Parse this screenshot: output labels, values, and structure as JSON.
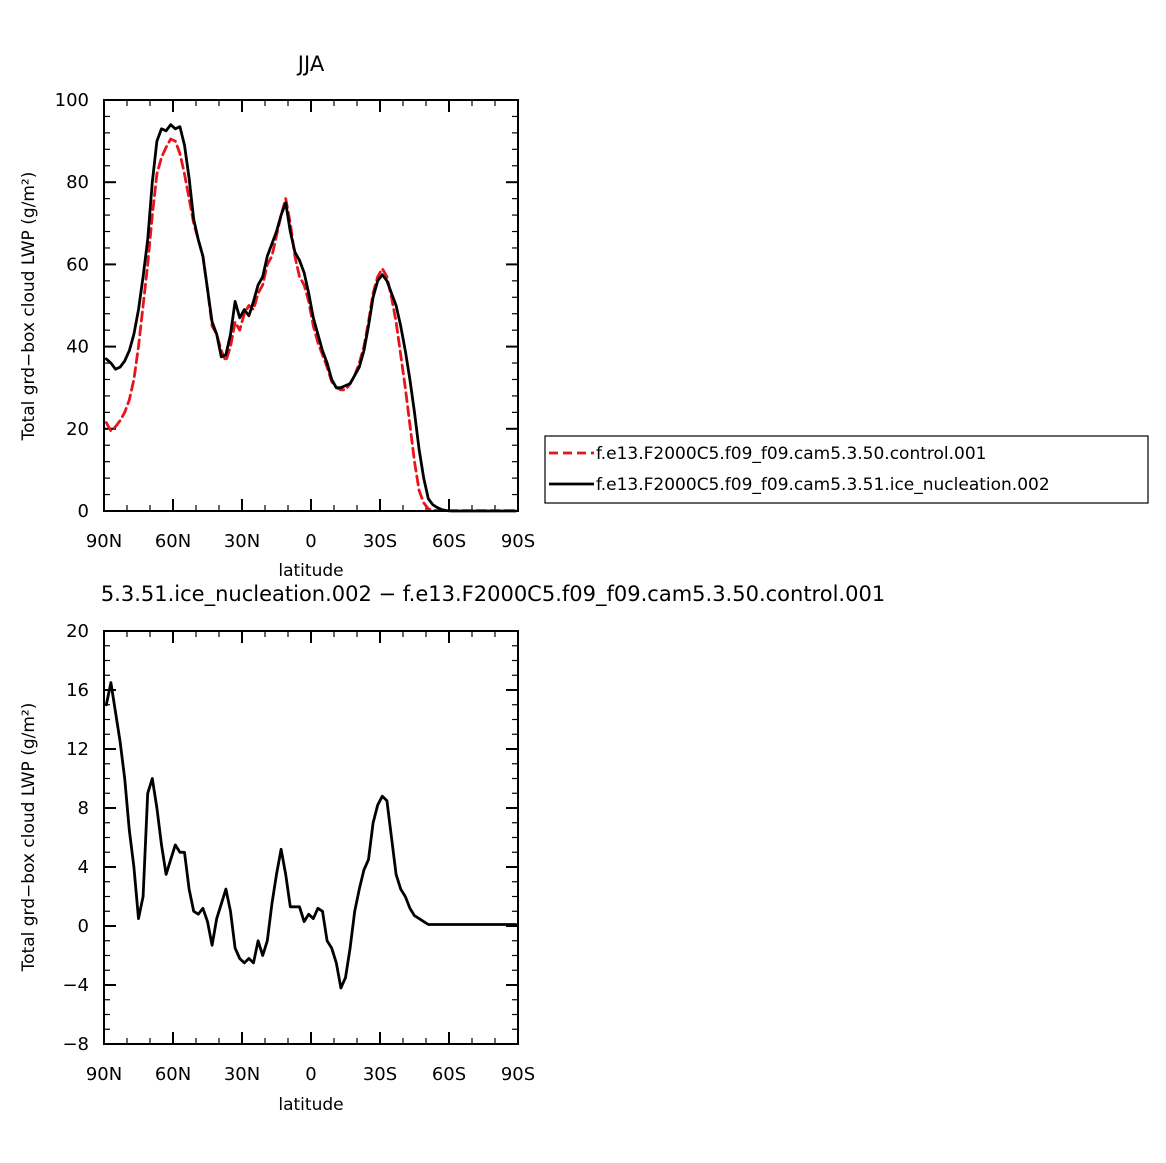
{
  "chart_data": [
    {
      "type": "line",
      "title": "JJA",
      "xlabel": "latitude",
      "ylabel": "Total grd−box cloud LWP (g/m²)",
      "x_ticks": [
        {
          "value": 90,
          "label": "90N"
        },
        {
          "value": 60,
          "label": "60N"
        },
        {
          "value": 30,
          "label": "30N"
        },
        {
          "value": 0,
          "label": "0"
        },
        {
          "value": -30,
          "label": "30S"
        },
        {
          "value": -60,
          "label": "60S"
        },
        {
          "value": -90,
          "label": "90S"
        }
      ],
      "xlim": [
        90,
        -90
      ],
      "ylim": [
        0,
        100
      ],
      "y_ticks": [
        0,
        20,
        40,
        60,
        80,
        100
      ],
      "y_tick_labels": [
        "0",
        "20",
        "40",
        "60",
        "80",
        "100"
      ],
      "legend_position": "right",
      "series": [
        {
          "name": "f.e13.F2000C5.f09_f09.cam5.3.50.control.001",
          "color": "#e8141c",
          "dash": "dashed",
          "x": [
            89,
            87,
            85,
            83,
            81,
            79,
            77,
            75,
            73,
            71,
            69,
            67,
            65,
            63,
            61,
            59,
            57,
            55,
            53,
            51,
            49,
            47,
            45,
            43,
            41,
            39,
            37,
            35,
            33,
            31,
            29,
            27,
            25,
            23,
            21,
            19,
            17,
            15,
            13,
            11,
            9,
            7,
            5,
            3,
            1,
            -1,
            -3,
            -5,
            -7,
            -9,
            -11,
            -13,
            -15,
            -17,
            -19,
            -21,
            -23,
            -25,
            -27,
            -29,
            -31,
            -33,
            -35,
            -37,
            -39,
            -41,
            -43,
            -45,
            -47,
            -49,
            -51,
            -53,
            -55,
            -57,
            -59,
            -61,
            -63,
            -65,
            -67,
            -69,
            -71,
            -73,
            -75,
            -77,
            -79,
            -81,
            -83,
            -85,
            -87,
            -89
          ],
          "y": [
            21.5,
            19.5,
            20.5,
            22,
            24,
            27,
            32,
            40,
            50,
            60,
            72,
            82,
            86,
            88.5,
            90.5,
            90,
            87,
            82,
            76,
            70,
            66,
            62,
            54,
            45,
            43,
            39,
            36.5,
            40,
            46,
            44,
            48,
            50,
            49,
            53,
            55,
            60,
            62,
            67,
            72,
            76,
            70,
            62,
            57,
            55,
            51,
            45,
            41,
            38,
            35,
            31.5,
            30,
            29.5,
            29.5,
            31,
            33,
            36,
            40,
            46,
            53,
            57,
            59,
            57,
            52,
            46,
            38,
            30,
            21,
            12,
            5,
            2,
            0.5,
            0.2,
            0.1,
            0.1,
            0.1,
            0.1,
            0.1,
            0.1,
            0.1,
            0.1,
            0.1,
            0.1,
            0.1,
            0.1,
            0.1,
            0.1,
            0.1,
            0.1,
            0.1,
            0.1
          ]
        },
        {
          "name": "f.e13.F2000C5.f09_f09.cam5.3.51.ice_nucleation.002",
          "color": "#000000",
          "dash": "solid",
          "x": [
            89,
            87,
            85,
            83,
            81,
            79,
            77,
            75,
            73,
            71,
            69,
            67,
            65,
            63,
            61,
            59,
            57,
            55,
            53,
            51,
            49,
            47,
            45,
            43,
            41,
            39,
            37,
            35,
            33,
            31,
            29,
            27,
            25,
            23,
            21,
            19,
            17,
            15,
            13,
            11,
            9,
            7,
            5,
            3,
            1,
            -1,
            -3,
            -5,
            -7,
            -9,
            -11,
            -13,
            -15,
            -17,
            -19,
            -21,
            -23,
            -25,
            -27,
            -29,
            -31,
            -33,
            -35,
            -37,
            -39,
            -41,
            -43,
            -45,
            -47,
            -49,
            -51,
            -53,
            -55,
            -57,
            -59,
            -61,
            -63,
            -65,
            -67,
            -69,
            -71,
            -73,
            -75,
            -77,
            -79,
            -81,
            -83,
            -85,
            -87,
            -89
          ],
          "y": [
            37,
            36,
            34.5,
            35,
            36.5,
            39,
            43,
            49,
            57,
            66,
            80,
            90,
            93,
            92.5,
            94,
            93,
            93.5,
            89,
            81,
            71,
            66,
            62,
            54,
            46,
            43,
            37.5,
            38,
            43,
            51,
            47,
            49,
            47.5,
            51,
            55,
            57,
            62,
            65,
            68,
            72,
            75,
            68,
            63,
            61,
            58,
            53,
            47,
            43,
            39,
            36,
            32,
            30,
            30,
            30.5,
            31,
            33,
            35,
            39,
            45,
            52,
            56,
            57.5,
            56,
            53,
            50,
            45,
            39,
            32,
            24,
            15,
            8,
            3,
            1.5,
            0.8,
            0.3,
            0.1,
            0,
            0,
            0,
            0,
            0,
            0,
            0,
            0,
            0,
            0,
            0,
            0,
            0,
            0,
            0
          ]
        }
      ]
    },
    {
      "type": "line",
      "title": "5.3.51.ice_nucleation.002 − f.e13.F2000C5.f09_f09.cam5.3.50.control.001",
      "xlabel": "latitude",
      "ylabel": "Total grd−box cloud LWP (g/m²)",
      "x_ticks": [
        {
          "value": 90,
          "label": "90N"
        },
        {
          "value": 60,
          "label": "60N"
        },
        {
          "value": 30,
          "label": "30N"
        },
        {
          "value": 0,
          "label": "0"
        },
        {
          "value": -30,
          "label": "30S"
        },
        {
          "value": -60,
          "label": "60S"
        },
        {
          "value": -90,
          "label": "90S"
        }
      ],
      "xlim": [
        90,
        -90
      ],
      "ylim": [
        -8,
        20
      ],
      "y_ticks": [
        -8,
        -4,
        0,
        4,
        8,
        12,
        16,
        20
      ],
      "y_tick_labels": [
        "−8",
        "−4",
        "0",
        "4",
        "8",
        "12",
        "16",
        "20"
      ],
      "series": [
        {
          "color": "#000000",
          "dash": "solid",
          "x": [
            89,
            87,
            85,
            83,
            81,
            79,
            77,
            75,
            73,
            71,
            69,
            67,
            65,
            63,
            61,
            59,
            57,
            55,
            53,
            51,
            49,
            47,
            45,
            43,
            41,
            39,
            37,
            35,
            33,
            31,
            29,
            27,
            25,
            23,
            21,
            19,
            17,
            15,
            13,
            11,
            9,
            7,
            5,
            3,
            1,
            -1,
            -3,
            -5,
            -7,
            -9,
            -11,
            -13,
            -15,
            -17,
            -19,
            -21,
            -23,
            -25,
            -27,
            -29,
            -31,
            -33,
            -35,
            -37,
            -39,
            -41,
            -43,
            -45,
            -47,
            -49,
            -51,
            -53,
            -55,
            -57,
            -59,
            -61,
            -63,
            -65,
            -67,
            -69,
            -71,
            -73,
            -75,
            -77,
            -79,
            -81,
            -83,
            -85,
            -87,
            -89
          ],
          "y": [
            15,
            16.5,
            14.5,
            12.5,
            10,
            6.5,
            4,
            0.5,
            2,
            9,
            10,
            8,
            5.5,
            3.5,
            4.5,
            5.5,
            5,
            5,
            2.5,
            1,
            0.8,
            1.2,
            0.3,
            -1.3,
            0.5,
            1.5,
            2.5,
            1,
            -1.5,
            -2.2,
            -2.5,
            -2.2,
            -2.5,
            -1,
            -2,
            -1,
            1.5,
            3.5,
            5.2,
            3.5,
            1.3,
            1.3,
            1.3,
            0.3,
            0.8,
            0.5,
            1.2,
            1,
            -1,
            -1.5,
            -2.5,
            -4.2,
            -3.5,
            -1.5,
            1,
            2.5,
            3.8,
            4.5,
            7,
            8.2,
            8.8,
            8.5,
            6,
            3.5,
            2.5,
            2,
            1.2,
            0.7,
            0.5,
            0.3,
            0.1,
            0.1,
            0.1,
            0.1,
            0.1,
            0.1,
            0.1,
            0.1,
            0.1,
            0.1,
            0.1,
            0.1,
            0.1,
            0.1,
            0.1,
            0.1,
            0.1,
            0.1,
            0.1,
            0.1
          ]
        }
      ]
    }
  ]
}
